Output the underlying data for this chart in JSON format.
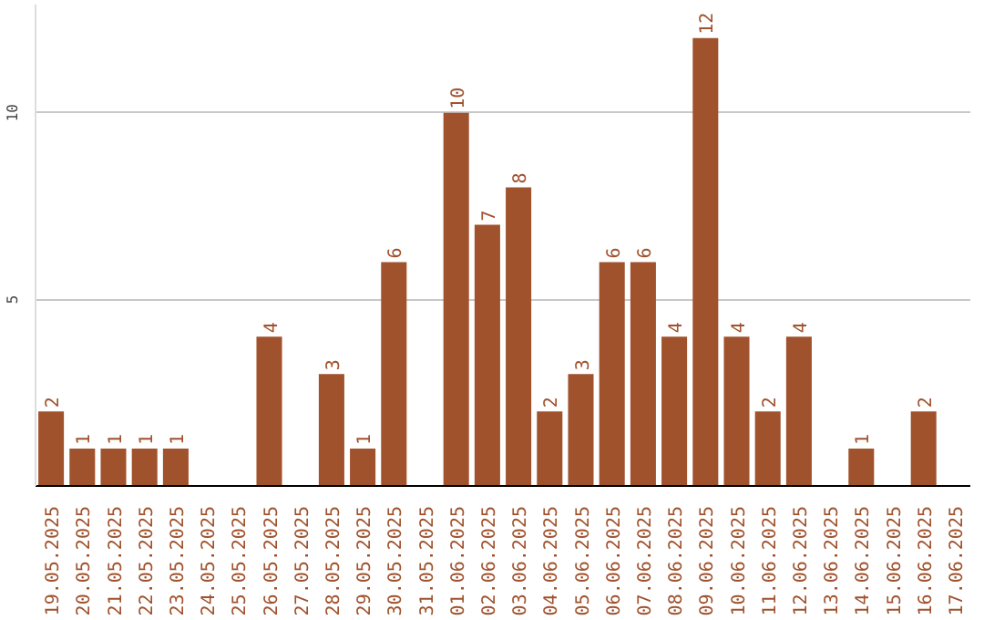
{
  "chart_data": {
    "type": "bar",
    "color": "#a0522d",
    "categories": [
      "19.05.2025",
      "20.05.2025",
      "21.05.2025",
      "22.05.2025",
      "23.05.2025",
      "24.05.2025",
      "25.05.2025",
      "26.05.2025",
      "27.05.2025",
      "28.05.2025",
      "29.05.2025",
      "30.05.2025",
      "31.05.2025",
      "01.06.2025",
      "02.06.2025",
      "03.06.2025",
      "04.06.2025",
      "05.06.2025",
      "06.06.2025",
      "07.06.2025",
      "08.06.2025",
      "09.06.2025",
      "10.06.2025",
      "11.06.2025",
      "12.06.2025",
      "13.06.2025",
      "14.06.2025",
      "15.06.2025",
      "16.06.2025",
      "17.06.2025"
    ],
    "values": [
      2,
      1,
      1,
      1,
      1,
      null,
      null,
      4,
      null,
      3,
      1,
      6,
      null,
      10,
      7,
      8,
      2,
      3,
      6,
      6,
      4,
      12,
      4,
      2,
      4,
      null,
      1,
      null,
      2,
      null
    ],
    "data_labels": true,
    "ylim": [
      0,
      12.9
    ],
    "yticks": [
      5,
      10
    ],
    "grid": "y"
  }
}
